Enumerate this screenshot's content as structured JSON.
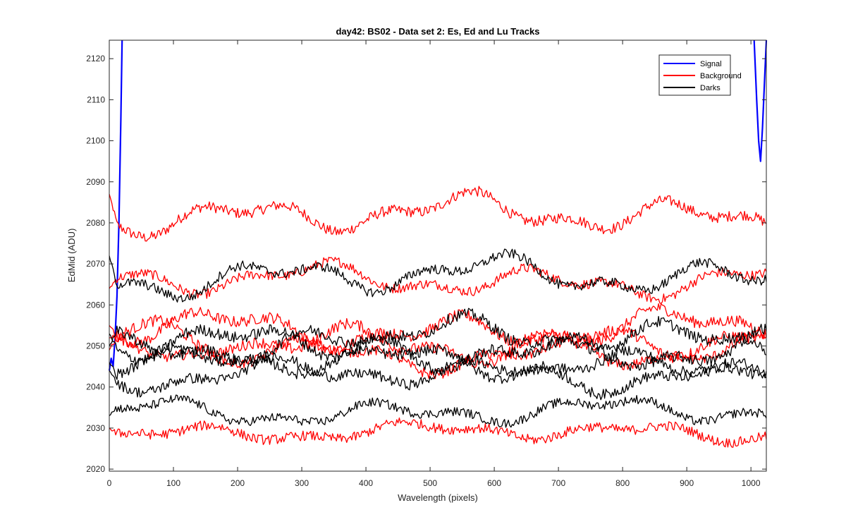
{
  "chart_data": {
    "type": "line",
    "title": "day42: BS02 - Data set 2: Es, Ed and Lu Tracks",
    "xlabel": "Wavelength (pixels)",
    "ylabel": "EdMid (ADU)",
    "xlim": [
      0,
      1024
    ],
    "ylim": [
      2019.5,
      2124.5
    ],
    "xticks": [
      0,
      100,
      200,
      300,
      400,
      500,
      600,
      700,
      800,
      900,
      1000
    ],
    "yticks": [
      2020,
      2030,
      2040,
      2050,
      2060,
      2070,
      2080,
      2090,
      2100,
      2110,
      2120
    ],
    "legend_position": "top-right",
    "legend": [
      {
        "name": "Signal",
        "color": "#0000ff"
      },
      {
        "name": "Background",
        "color": "#ff0000"
      },
      {
        "name": "Darks",
        "color": "#000000"
      }
    ],
    "series": [
      {
        "name": "Signal",
        "color": "#0000ff",
        "shape": "edge-spikes",
        "left_points": [
          [
            0,
            2044
          ],
          [
            3,
            2047
          ],
          [
            6,
            2045
          ],
          [
            9,
            2052
          ],
          [
            12,
            2062
          ],
          [
            15,
            2080
          ],
          [
            18,
            2105
          ],
          [
            20,
            2124.5
          ]
        ],
        "right_points": [
          [
            1005,
            2124.5
          ],
          [
            1009,
            2110
          ],
          [
            1012,
            2100
          ],
          [
            1015,
            2095
          ],
          [
            1018,
            2103
          ],
          [
            1021,
            2114
          ],
          [
            1024,
            2124.5
          ]
        ]
      },
      {
        "name": "Background",
        "color": "#ff0000",
        "base": 2082,
        "amplitude": 3,
        "noise": 1.3,
        "start": 2087
      },
      {
        "name": "Background",
        "color": "#ff0000",
        "base": 2066,
        "amplitude": 2.5,
        "noise": 1.2,
        "start": 2064
      },
      {
        "name": "Background",
        "color": "#ff0000",
        "base": 2054,
        "amplitude": 3,
        "noise": 1.4,
        "start": 2055
      },
      {
        "name": "Background",
        "color": "#ff0000",
        "base": 2051,
        "amplitude": 3,
        "noise": 1.4,
        "start": 2052
      },
      {
        "name": "Background",
        "color": "#ff0000",
        "base": 2048,
        "amplitude": 2.5,
        "noise": 1.3,
        "start": 2049
      },
      {
        "name": "Background",
        "color": "#ff0000",
        "base": 2029,
        "amplitude": 1.5,
        "noise": 1.2,
        "start": 2030
      },
      {
        "name": "Darks",
        "color": "#000000",
        "base": 2067,
        "amplitude": 3,
        "noise": 1.2,
        "start": 2072
      },
      {
        "name": "Darks",
        "color": "#000000",
        "base": 2052,
        "amplitude": 3,
        "noise": 1.4,
        "start": 2053
      },
      {
        "name": "Darks",
        "color": "#000000",
        "base": 2049,
        "amplitude": 3,
        "noise": 1.4,
        "start": 2050
      },
      {
        "name": "Darks",
        "color": "#000000",
        "base": 2046,
        "amplitude": 2.5,
        "noise": 1.3,
        "start": 2046
      },
      {
        "name": "Darks",
        "color": "#000000",
        "base": 2043,
        "amplitude": 2.5,
        "noise": 1.3,
        "start": 2044
      },
      {
        "name": "Darks",
        "color": "#000000",
        "base": 2034,
        "amplitude": 2,
        "noise": 1.1,
        "start": 2033
      }
    ]
  }
}
